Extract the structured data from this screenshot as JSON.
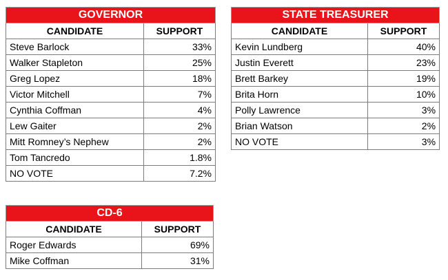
{
  "tables": {
    "governor": {
      "title": "GOVERNOR",
      "col_candidate": "CANDIDATE",
      "col_support": "SUPPORT",
      "rows": [
        {
          "candidate": "Steve Barlock",
          "support": "33%"
        },
        {
          "candidate": "Walker Stapleton",
          "support": "25%"
        },
        {
          "candidate": "Greg Lopez",
          "support": "18%"
        },
        {
          "candidate": "Victor Mitchell",
          "support": "7%"
        },
        {
          "candidate": "Cynthia Coffman",
          "support": "4%"
        },
        {
          "candidate": "Lew Gaiter",
          "support": "2%"
        },
        {
          "candidate": "Mitt Romney’s Nephew",
          "support": "2%"
        },
        {
          "candidate": "Tom Tancredo",
          "support": "1.8%"
        },
        {
          "candidate": "NO VOTE",
          "support": "7.2%"
        }
      ]
    },
    "treasurer": {
      "title": "STATE TREASURER",
      "col_candidate": "CANDIDATE",
      "col_support": "SUPPORT",
      "rows": [
        {
          "candidate": "Kevin Lundberg",
          "support": "40%"
        },
        {
          "candidate": "Justin Everett",
          "support": "23%"
        },
        {
          "candidate": "Brett Barkey",
          "support": "19%"
        },
        {
          "candidate": "Brita Horn",
          "support": "10%"
        },
        {
          "candidate": "Polly Lawrence",
          "support": "3%"
        },
        {
          "candidate": "Brian Watson",
          "support": "2%"
        },
        {
          "candidate": "NO VOTE",
          "support": "3%"
        }
      ]
    },
    "cd6": {
      "title": "CD-6",
      "col_candidate": "CANDIDATE",
      "col_support": "SUPPORT",
      "rows": [
        {
          "candidate": "Roger Edwards",
          "support": "69%"
        },
        {
          "candidate": "Mike Coffman",
          "support": "31%"
        }
      ]
    }
  },
  "colors": {
    "header_red": "#e8141a",
    "header_text": "#ffffff",
    "border": "#7a7a7a"
  }
}
